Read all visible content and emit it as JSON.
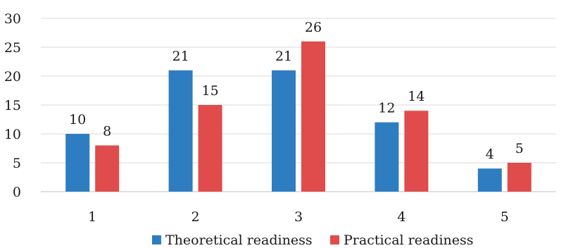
{
  "chart_data": {
    "type": "bar",
    "title": "",
    "xlabel": "",
    "ylabel": "",
    "categories": [
      "1",
      "2",
      "3",
      "4",
      "5"
    ],
    "series": [
      {
        "name": "Theoretical readiness",
        "color": "#2e7dc1",
        "values": [
          10,
          21,
          21,
          12,
          4
        ]
      },
      {
        "name": "Practical readiness",
        "color": "#e04b4b",
        "values": [
          8,
          15,
          26,
          14,
          5
        ]
      }
    ],
    "ylim": [
      0,
      30
    ],
    "yticks": [
      0,
      5,
      10,
      15,
      20,
      25,
      30
    ],
    "grid": true,
    "data_labels": true,
    "legend_position": "bottom"
  }
}
